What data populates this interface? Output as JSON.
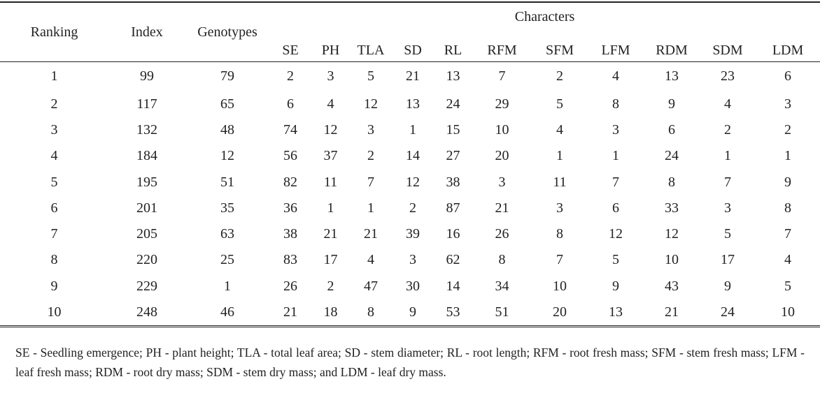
{
  "table": {
    "headers": [
      "Ranking",
      "Index",
      "Genotypes"
    ],
    "group_header": "Characters",
    "subheaders": [
      "SE",
      "PH",
      "TLA",
      "SD",
      "RL",
      "RFM",
      "SFM",
      "LFM",
      "RDM",
      "SDM",
      "LDM"
    ],
    "rows": [
      [
        1,
        99,
        79,
        2,
        3,
        5,
        21,
        13,
        7,
        2,
        4,
        13,
        23,
        6
      ],
      [
        2,
        117,
        65,
        6,
        4,
        12,
        13,
        24,
        29,
        5,
        8,
        9,
        4,
        3
      ],
      [
        3,
        132,
        48,
        74,
        12,
        3,
        1,
        15,
        10,
        4,
        3,
        6,
        2,
        2
      ],
      [
        4,
        184,
        12,
        56,
        37,
        2,
        14,
        27,
        20,
        1,
        1,
        24,
        1,
        1
      ],
      [
        5,
        195,
        51,
        82,
        11,
        7,
        12,
        38,
        3,
        11,
        7,
        8,
        7,
        9
      ],
      [
        6,
        201,
        35,
        36,
        1,
        1,
        2,
        87,
        21,
        3,
        6,
        33,
        3,
        8
      ],
      [
        7,
        205,
        63,
        38,
        21,
        21,
        39,
        16,
        26,
        8,
        12,
        12,
        5,
        7
      ],
      [
        8,
        220,
        25,
        83,
        17,
        4,
        3,
        62,
        8,
        7,
        5,
        10,
        17,
        4
      ],
      [
        9,
        229,
        1,
        26,
        2,
        47,
        30,
        14,
        34,
        10,
        9,
        43,
        9,
        5
      ],
      [
        10,
        248,
        46,
        21,
        18,
        8,
        9,
        53,
        51,
        20,
        13,
        21,
        24,
        10
      ]
    ]
  },
  "footnote": "SE - Seedling emergence; PH - plant height; TLA - total leaf area; SD - stem diameter; RL - root length; RFM - root fresh mass; SFM - stem fresh mass; LFM - leaf fresh mass; RDM - root dry mass; SDM - stem dry mass; and LDM - leaf dry mass."
}
